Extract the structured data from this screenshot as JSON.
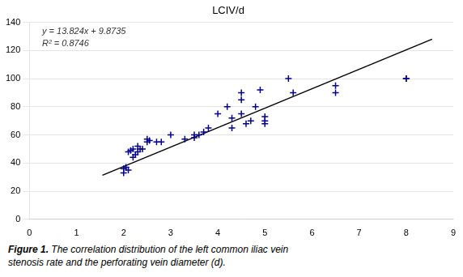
{
  "chart_data": {
    "type": "scatter",
    "title": "LCIV/d",
    "annotations": [
      "y = 13.824x + 9.8735",
      "R² = 0.8746"
    ],
    "caption": [
      "Figure 1.",
      "The correlation distribution of the left common iliac vein",
      "stenosis rate and the perforating vein diameter (d)."
    ],
    "series": [
      {
        "type": "scatter",
        "color": "#00008B",
        "marker": "plus",
        "x": [
          2.0,
          2.0,
          2.05,
          2.1,
          2.1,
          2.15,
          2.2,
          2.2,
          2.25,
          2.3,
          2.3,
          2.35,
          2.4,
          2.5,
          2.5,
          2.55,
          2.7,
          2.8,
          3.0,
          3.3,
          3.5,
          3.5,
          3.6,
          3.7,
          3.8,
          4.0,
          4.2,
          4.3,
          4.3,
          4.5,
          4.5,
          4.5,
          4.6,
          4.7,
          4.8,
          4.9,
          5.0,
          5.0,
          5.0,
          5.5,
          5.6,
          6.5,
          6.5,
          8.0,
          8.0
        ],
        "values": [
          33,
          36,
          37,
          35,
          48,
          49,
          50,
          44,
          46,
          48,
          52,
          50,
          50,
          55,
          57,
          56,
          55,
          55,
          60,
          57,
          58,
          60,
          60,
          62,
          65,
          75,
          80,
          72,
          65,
          90,
          85,
          75,
          68,
          70,
          80,
          92,
          73,
          68,
          70,
          100,
          90,
          95,
          90,
          100,
          100
        ]
      },
      {
        "type": "line",
        "color": "#000000",
        "x": [
          1.55,
          8.55
        ],
        "values": [
          31.3007,
          128.0687
        ]
      }
    ],
    "xlim": [
      0,
      9
    ],
    "ylim": [
      0,
      140
    ],
    "xticks": [
      0,
      1,
      2,
      3,
      4,
      5,
      6,
      7,
      8,
      9
    ],
    "yticks": [
      0,
      20,
      40,
      60,
      80,
      100,
      120,
      140
    ],
    "grid": "y"
  }
}
